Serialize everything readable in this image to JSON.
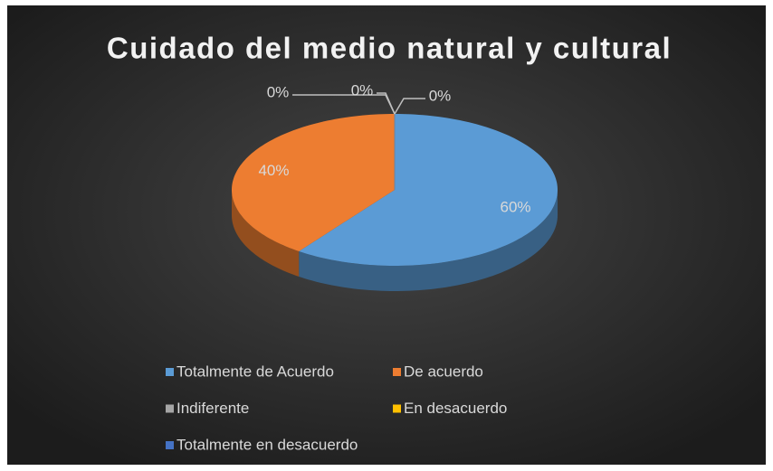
{
  "chart_data": {
    "type": "pie",
    "title": "Cuidado del medio natural y cultural",
    "categories": [
      "Totalmente de Acuerdo",
      "De acuerdo",
      "Indiferente",
      "En desacuerdo",
      "Totalmente en desacuerdo"
    ],
    "values": [
      60,
      40,
      0,
      0,
      0
    ],
    "value_labels": [
      "60%",
      "40%",
      "0%",
      "0%",
      "0%"
    ],
    "colors": [
      "#5b9bd5",
      "#ed7d31",
      "#a5a5a5",
      "#ffc000",
      "#4472c4"
    ],
    "legend": "bottom"
  }
}
